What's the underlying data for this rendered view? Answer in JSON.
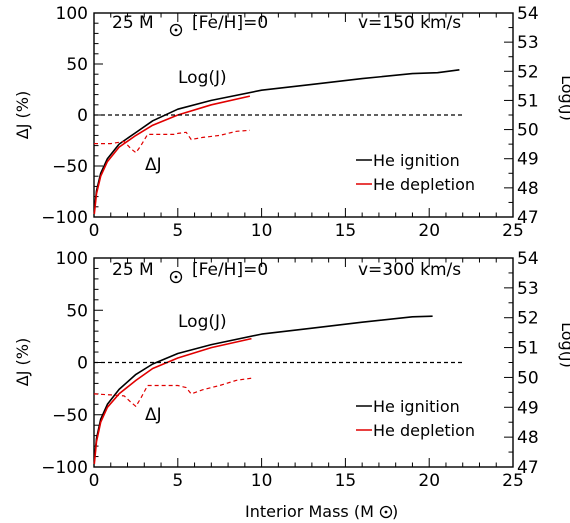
{
  "chart_data": [
    {
      "type": "line",
      "panel": "top",
      "annotations": {
        "mass_label": "25 M",
        "metallicity": "[Fe/H]=0",
        "velocity": "v=150 km/s",
        "logj_label": "Log(J)",
        "dj_label": "ΔJ"
      },
      "xlabel": "",
      "ylabel_left": "ΔJ (%)",
      "ylabel_right": "Log(J)",
      "xlim": [
        0,
        25
      ],
      "ylim_left": [
        -100,
        100
      ],
      "ylim_right": [
        47,
        54
      ],
      "x_ticks": [
        "0",
        "5",
        "10",
        "15",
        "20",
        "25"
      ],
      "y_ticks_left": [
        "100",
        "50",
        "0",
        "−50",
        "−100"
      ],
      "y_ticks_right": [
        "54",
        "53",
        "52",
        "51",
        "50",
        "49",
        "48",
        "47"
      ],
      "legend": {
        "position": "right",
        "entries": [
          {
            "label": "He ignition",
            "color": "#000000"
          },
          {
            "label": "He depletion",
            "color": "#e00000"
          }
        ]
      },
      "series": [
        {
          "name": "He ignition",
          "color": "#000000",
          "style": "solid",
          "axis": "right",
          "points": [
            [
              0.02,
              47.2
            ],
            [
              0.15,
              47.9
            ],
            [
              0.4,
              48.5
            ],
            [
              0.8,
              49.0
            ],
            [
              1.5,
              49.5
            ],
            [
              2.5,
              49.9
            ],
            [
              3.5,
              50.3
            ],
            [
              5,
              50.7
            ],
            [
              7,
              51.0
            ],
            [
              10,
              51.35
            ],
            [
              13,
              51.55
            ],
            [
              16,
              51.75
            ],
            [
              19,
              51.92
            ],
            [
              20.5,
              51.95
            ],
            [
              21.8,
              52.05
            ]
          ]
        },
        {
          "name": "He depletion",
          "color": "#e00000",
          "style": "solid",
          "axis": "right",
          "points": [
            [
              0.02,
              47.1
            ],
            [
              0.15,
              47.8
            ],
            [
              0.4,
              48.4
            ],
            [
              0.8,
              48.9
            ],
            [
              1.5,
              49.4
            ],
            [
              2.5,
              49.8
            ],
            [
              3.5,
              50.15
            ],
            [
              5,
              50.5
            ],
            [
              7,
              50.85
            ],
            [
              9.3,
              51.15
            ]
          ]
        },
        {
          "name": "ΔJ",
          "color": "#e00000",
          "style": "dashed",
          "axis": "left",
          "points": [
            [
              0,
              -28
            ],
            [
              1,
              -28
            ],
            [
              1.8,
              -26
            ],
            [
              2.2,
              -33
            ],
            [
              2.5,
              -37
            ],
            [
              2.8,
              -30
            ],
            [
              3.2,
              -19
            ],
            [
              4.8,
              -19
            ],
            [
              5,
              -18
            ],
            [
              5.5,
              -17
            ],
            [
              5.8,
              -24
            ],
            [
              6.5,
              -22
            ],
            [
              7.5,
              -20
            ],
            [
              8.5,
              -16
            ],
            [
              9.3,
              -15
            ]
          ]
        },
        {
          "name": "zero line",
          "color": "#000000",
          "style": "dashed",
          "axis": "left",
          "points": [
            [
              0,
              0
            ],
            [
              22,
              0
            ]
          ]
        }
      ]
    },
    {
      "type": "line",
      "panel": "bottom",
      "annotations": {
        "mass_label": "25 M",
        "metallicity": "[Fe/H]=0",
        "velocity": "v=300 km/s",
        "logj_label": "Log(J)",
        "dj_label": "ΔJ"
      },
      "xlabel": "Interior Mass (M",
      "ylabel_left": "ΔJ (%)",
      "ylabel_right": "Log(J)",
      "xlim": [
        0,
        25
      ],
      "ylim_left": [
        -100,
        100
      ],
      "ylim_right": [
        47,
        54
      ],
      "x_ticks": [
        "0",
        "5",
        "10",
        "15",
        "20",
        "25"
      ],
      "y_ticks_left": [
        "100",
        "50",
        "0",
        "−50",
        "−100"
      ],
      "y_ticks_right": [
        "54",
        "53",
        "52",
        "51",
        "50",
        "49",
        "48",
        "47"
      ],
      "legend": {
        "position": "right",
        "entries": [
          {
            "label": "He ignition",
            "color": "#000000"
          },
          {
            "label": "He depletion",
            "color": "#e00000"
          }
        ]
      },
      "series": [
        {
          "name": "He ignition",
          "color": "#000000",
          "style": "solid",
          "axis": "right",
          "points": [
            [
              0.02,
              47.2
            ],
            [
              0.15,
              47.95
            ],
            [
              0.4,
              48.6
            ],
            [
              0.8,
              49.1
            ],
            [
              1.5,
              49.6
            ],
            [
              2.5,
              50.1
            ],
            [
              3.5,
              50.45
            ],
            [
              5,
              50.8
            ],
            [
              7,
              51.1
            ],
            [
              10,
              51.45
            ],
            [
              13,
              51.65
            ],
            [
              16,
              51.85
            ],
            [
              19,
              52.03
            ],
            [
              20.2,
              52.05
            ]
          ]
        },
        {
          "name": "He depletion",
          "color": "#e00000",
          "style": "solid",
          "axis": "right",
          "points": [
            [
              0.02,
              47.1
            ],
            [
              0.15,
              47.85
            ],
            [
              0.4,
              48.5
            ],
            [
              0.8,
              49.0
            ],
            [
              1.5,
              49.45
            ],
            [
              2.5,
              49.9
            ],
            [
              3.5,
              50.3
            ],
            [
              5,
              50.65
            ],
            [
              7,
              51.0
            ],
            [
              9.4,
              51.3
            ]
          ]
        },
        {
          "name": "ΔJ",
          "color": "#e00000",
          "style": "dashed",
          "axis": "left",
          "points": [
            [
              0,
              -30
            ],
            [
              1,
              -31
            ],
            [
              1.8,
              -32
            ],
            [
              2.2,
              -38
            ],
            [
              2.5,
              -42
            ],
            [
              2.8,
              -34
            ],
            [
              3.2,
              -22
            ],
            [
              5,
              -22
            ],
            [
              5.5,
              -24
            ],
            [
              5.8,
              -30
            ],
            [
              6.5,
              -26
            ],
            [
              7.5,
              -22
            ],
            [
              8.5,
              -17
            ],
            [
              9.4,
              -15
            ]
          ]
        },
        {
          "name": "zero line",
          "color": "#000000",
          "style": "dashed",
          "axis": "left",
          "points": [
            [
              0,
              0
            ],
            [
              22,
              0
            ]
          ]
        }
      ]
    }
  ]
}
